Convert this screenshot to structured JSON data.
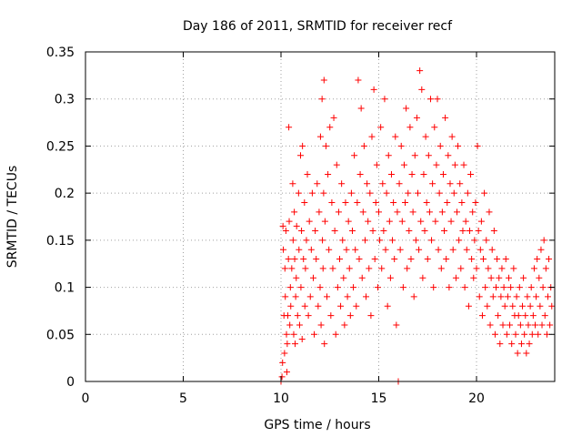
{
  "chart_data": {
    "type": "scatter",
    "title": "Day 186 of 2011, SRMTID for receiver recf",
    "xlabel": "GPS time / hours",
    "ylabel": "SRMTID / TECUs",
    "xlim": [
      0,
      24
    ],
    "ylim": [
      0,
      0.35
    ],
    "x_ticks": [
      0,
      5,
      10,
      15,
      20
    ],
    "y_ticks": [
      0,
      0.05,
      0.1,
      0.15,
      0.2,
      0.25,
      0.3,
      0.35
    ],
    "x_tick_labels": [
      "0",
      "5",
      "10",
      "15",
      "20"
    ],
    "y_tick_labels": [
      "0",
      "0.05",
      "0.1",
      "0.15",
      "0.2",
      "0.25",
      "0.3",
      "0.35"
    ],
    "grid": true,
    "marker": "+",
    "colors": {
      "points": "#ff0000",
      "axes": "#000000",
      "grid": "#a0a0a0"
    },
    "series": [
      {
        "name": "recf",
        "points": [
          [
            10.0,
            0.0
          ],
          [
            10.05,
            0.005
          ],
          [
            10.08,
            0.02
          ],
          [
            10.1,
            0.165
          ],
          [
            10.12,
            0.14
          ],
          [
            10.15,
            0.07
          ],
          [
            10.18,
            0.03
          ],
          [
            10.2,
            0.12
          ],
          [
            10.22,
            0.09
          ],
          [
            10.25,
            0.16
          ],
          [
            10.28,
            0.05
          ],
          [
            10.3,
            0.01
          ],
          [
            10.32,
            0.04
          ],
          [
            10.35,
            0.07
          ],
          [
            10.38,
            0.13
          ],
          [
            10.4,
            0.27
          ],
          [
            10.42,
            0.17
          ],
          [
            10.45,
            0.06
          ],
          [
            10.48,
            0.1
          ],
          [
            10.5,
            0.08
          ],
          [
            10.55,
            0.12
          ],
          [
            10.6,
            0.21
          ],
          [
            10.62,
            0.15
          ],
          [
            10.65,
            0.05
          ],
          [
            10.68,
            0.18
          ],
          [
            10.7,
            0.13
          ],
          [
            10.72,
            0.04
          ],
          [
            10.75,
            0.09
          ],
          [
            10.78,
            0.11
          ],
          [
            10.8,
            0.165
          ],
          [
            10.85,
            0.07
          ],
          [
            10.9,
            0.2
          ],
          [
            10.92,
            0.14
          ],
          [
            10.95,
            0.06
          ],
          [
            11.0,
            0.24
          ],
          [
            11.02,
            0.1
          ],
          [
            11.05,
            0.16
          ],
          [
            11.08,
            0.045
          ],
          [
            11.1,
            0.25
          ],
          [
            11.15,
            0.13
          ],
          [
            11.2,
            0.19
          ],
          [
            11.22,
            0.08
          ],
          [
            11.25,
            0.12
          ],
          [
            11.3,
            0.15
          ],
          [
            11.35,
            0.22
          ],
          [
            11.4,
            0.07
          ],
          [
            11.45,
            0.17
          ],
          [
            11.5,
            0.09
          ],
          [
            11.55,
            0.14
          ],
          [
            11.6,
            0.2
          ],
          [
            11.65,
            0.11
          ],
          [
            11.7,
            0.05
          ],
          [
            11.75,
            0.16
          ],
          [
            11.8,
            0.13
          ],
          [
            11.85,
            0.21
          ],
          [
            11.9,
            0.08
          ],
          [
            11.95,
            0.18
          ],
          [
            12.0,
            0.1
          ],
          [
            12.02,
            0.26
          ],
          [
            12.05,
            0.06
          ],
          [
            12.1,
            0.3
          ],
          [
            12.12,
            0.15
          ],
          [
            12.15,
            0.12
          ],
          [
            12.18,
            0.2
          ],
          [
            12.2,
            0.32
          ],
          [
            12.22,
            0.04
          ],
          [
            12.25,
            0.17
          ],
          [
            12.3,
            0.25
          ],
          [
            12.35,
            0.09
          ],
          [
            12.4,
            0.22
          ],
          [
            12.45,
            0.14
          ],
          [
            12.5,
            0.27
          ],
          [
            12.55,
            0.07
          ],
          [
            12.6,
            0.19
          ],
          [
            12.65,
            0.12
          ],
          [
            12.7,
            0.28
          ],
          [
            12.75,
            0.16
          ],
          [
            12.8,
            0.05
          ],
          [
            12.85,
            0.23
          ],
          [
            12.9,
            0.1
          ],
          [
            12.95,
            0.18
          ],
          [
            13.0,
            0.13
          ],
          [
            13.05,
            0.08
          ],
          [
            13.1,
            0.21
          ],
          [
            13.15,
            0.15
          ],
          [
            13.2,
            0.11
          ],
          [
            13.25,
            0.06
          ],
          [
            13.3,
            0.19
          ],
          [
            13.35,
            0.14
          ],
          [
            13.4,
            0.09
          ],
          [
            13.45,
            0.17
          ],
          [
            13.5,
            0.12
          ],
          [
            13.55,
            0.07
          ],
          [
            13.6,
            0.2
          ],
          [
            13.65,
            0.16
          ],
          [
            13.7,
            0.1
          ],
          [
            13.75,
            0.24
          ],
          [
            13.8,
            0.14
          ],
          [
            13.85,
            0.08
          ],
          [
            13.9,
            0.19
          ],
          [
            13.95,
            0.32
          ],
          [
            14.0,
            0.13
          ],
          [
            14.05,
            0.22
          ],
          [
            14.1,
            0.29
          ],
          [
            14.15,
            0.11
          ],
          [
            14.2,
            0.18
          ],
          [
            14.25,
            0.25
          ],
          [
            14.3,
            0.15
          ],
          [
            14.35,
            0.09
          ],
          [
            14.4,
            0.21
          ],
          [
            14.45,
            0.17
          ],
          [
            14.5,
            0.12
          ],
          [
            14.55,
            0.2
          ],
          [
            14.6,
            0.07
          ],
          [
            14.65,
            0.26
          ],
          [
            14.7,
            0.16
          ],
          [
            14.75,
            0.31
          ],
          [
            14.8,
            0.13
          ],
          [
            14.85,
            0.19
          ],
          [
            14.9,
            0.23
          ],
          [
            14.95,
            0.1
          ],
          [
            15.0,
            0.18
          ],
          [
            15.05,
            0.15
          ],
          [
            15.1,
            0.27
          ],
          [
            15.15,
            0.12
          ],
          [
            15.2,
            0.21
          ],
          [
            15.25,
            0.16
          ],
          [
            15.3,
            0.3
          ],
          [
            15.35,
            0.14
          ],
          [
            15.4,
            0.2
          ],
          [
            15.45,
            0.08
          ],
          [
            15.5,
            0.24
          ],
          [
            15.55,
            0.17
          ],
          [
            15.6,
            0.11
          ],
          [
            15.65,
            0.22
          ],
          [
            15.7,
            0.15
          ],
          [
            15.75,
            0.19
          ],
          [
            15.8,
            0.13
          ],
          [
            15.85,
            0.26
          ],
          [
            15.9,
            0.06
          ],
          [
            15.95,
            0.18
          ],
          [
            16.0,
            0.0
          ],
          [
            16.05,
            0.21
          ],
          [
            16.1,
            0.14
          ],
          [
            16.15,
            0.25
          ],
          [
            16.2,
            0.17
          ],
          [
            16.25,
            0.1
          ],
          [
            16.3,
            0.23
          ],
          [
            16.35,
            0.19
          ],
          [
            16.4,
            0.29
          ],
          [
            16.45,
            0.12
          ],
          [
            16.5,
            0.2
          ],
          [
            16.55,
            0.16
          ],
          [
            16.6,
            0.27
          ],
          [
            16.65,
            0.13
          ],
          [
            16.7,
            0.22
          ],
          [
            16.75,
            0.18
          ],
          [
            16.8,
            0.09
          ],
          [
            16.85,
            0.24
          ],
          [
            16.9,
            0.15
          ],
          [
            16.95,
            0.28
          ],
          [
            17.0,
            0.2
          ],
          [
            17.05,
            0.14
          ],
          [
            17.1,
            0.33
          ],
          [
            17.15,
            0.17
          ],
          [
            17.2,
            0.31
          ],
          [
            17.25,
            0.11
          ],
          [
            17.3,
            0.22
          ],
          [
            17.35,
            0.16
          ],
          [
            17.4,
            0.26
          ],
          [
            17.45,
            0.19
          ],
          [
            17.5,
            0.13
          ],
          [
            17.55,
            0.24
          ],
          [
            17.6,
            0.18
          ],
          [
            17.65,
            0.3
          ],
          [
            17.7,
            0.15
          ],
          [
            17.75,
            0.21
          ],
          [
            17.8,
            0.1
          ],
          [
            17.85,
            0.27
          ],
          [
            17.9,
            0.17
          ],
          [
            17.95,
            0.23
          ],
          [
            18.0,
            0.3
          ],
          [
            18.05,
            0.14
          ],
          [
            18.1,
            0.2
          ],
          [
            18.15,
            0.25
          ],
          [
            18.2,
            0.12
          ],
          [
            18.25,
            0.18
          ],
          [
            18.3,
            0.22
          ],
          [
            18.35,
            0.16
          ],
          [
            18.4,
            0.28
          ],
          [
            18.45,
            0.13
          ],
          [
            18.5,
            0.19
          ],
          [
            18.55,
            0.24
          ],
          [
            18.6,
            0.1
          ],
          [
            18.65,
            0.21
          ],
          [
            18.7,
            0.17
          ],
          [
            18.75,
            0.26
          ],
          [
            18.8,
            0.14
          ],
          [
            18.85,
            0.2
          ],
          [
            18.9,
            0.23
          ],
          [
            18.95,
            0.11
          ],
          [
            19.0,
            0.18
          ],
          [
            19.05,
            0.25
          ],
          [
            19.1,
            0.15
          ],
          [
            19.15,
            0.21
          ],
          [
            19.2,
            0.12
          ],
          [
            19.25,
            0.19
          ],
          [
            19.3,
            0.16
          ],
          [
            19.35,
            0.23
          ],
          [
            19.4,
            0.1
          ],
          [
            19.45,
            0.17
          ],
          [
            19.5,
            0.14
          ],
          [
            19.55,
            0.2
          ],
          [
            19.6,
            0.08
          ],
          [
            19.65,
            0.16
          ],
          [
            19.7,
            0.22
          ],
          [
            19.75,
            0.13
          ],
          [
            19.8,
            0.18
          ],
          [
            19.85,
            0.11
          ],
          [
            19.9,
            0.15
          ],
          [
            19.95,
            0.19
          ],
          [
            20.0,
            0.12
          ],
          [
            20.05,
            0.25
          ],
          [
            20.1,
            0.16
          ],
          [
            20.15,
            0.09
          ],
          [
            20.2,
            0.14
          ],
          [
            20.25,
            0.17
          ],
          [
            20.3,
            0.07
          ],
          [
            20.35,
            0.13
          ],
          [
            20.4,
            0.2
          ],
          [
            20.45,
            0.1
          ],
          [
            20.5,
            0.15
          ],
          [
            20.55,
            0.08
          ],
          [
            20.6,
            0.12
          ],
          [
            20.65,
            0.18
          ],
          [
            20.7,
            0.06
          ],
          [
            20.75,
            0.11
          ],
          [
            20.8,
            0.14
          ],
          [
            20.85,
            0.09
          ],
          [
            20.9,
            0.16
          ],
          [
            20.95,
            0.05
          ],
          [
            21.0,
            0.1
          ],
          [
            21.05,
            0.13
          ],
          [
            21.1,
            0.07
          ],
          [
            21.15,
            0.11
          ],
          [
            21.2,
            0.04
          ],
          [
            21.25,
            0.09
          ],
          [
            21.3,
            0.12
          ],
          [
            21.35,
            0.06
          ],
          [
            21.4,
            0.1
          ],
          [
            21.45,
            0.08
          ],
          [
            21.5,
            0.13
          ],
          [
            21.55,
            0.05
          ],
          [
            21.6,
            0.09
          ],
          [
            21.65,
            0.11
          ],
          [
            21.7,
            0.06
          ],
          [
            21.75,
            0.1
          ],
          [
            21.8,
            0.04
          ],
          [
            21.85,
            0.08
          ],
          [
            21.9,
            0.12
          ],
          [
            21.95,
            0.07
          ],
          [
            22.0,
            0.05
          ],
          [
            22.05,
            0.09
          ],
          [
            22.1,
            0.03
          ],
          [
            22.15,
            0.07
          ],
          [
            22.2,
            0.1
          ],
          [
            22.25,
            0.06
          ],
          [
            22.3,
            0.04
          ],
          [
            22.35,
            0.08
          ],
          [
            22.4,
            0.11
          ],
          [
            22.45,
            0.05
          ],
          [
            22.5,
            0.07
          ],
          [
            22.55,
            0.03
          ],
          [
            22.6,
            0.09
          ],
          [
            22.65,
            0.06
          ],
          [
            22.7,
            0.04
          ],
          [
            22.75,
            0.08
          ],
          [
            22.8,
            0.1
          ],
          [
            22.85,
            0.05
          ],
          [
            22.9,
            0.07
          ],
          [
            22.95,
            0.12
          ],
          [
            23.0,
            0.06
          ],
          [
            23.05,
            0.09
          ],
          [
            23.1,
            0.13
          ],
          [
            23.15,
            0.05
          ],
          [
            23.2,
            0.11
          ],
          [
            23.25,
            0.08
          ],
          [
            23.3,
            0.14
          ],
          [
            23.35,
            0.06
          ],
          [
            23.4,
            0.1
          ],
          [
            23.45,
            0.15
          ],
          [
            23.5,
            0.07
          ],
          [
            23.55,
            0.12
          ],
          [
            23.6,
            0.05
          ],
          [
            23.65,
            0.09
          ],
          [
            23.7,
            0.13
          ],
          [
            23.75,
            0.06
          ],
          [
            23.8,
            0.1
          ],
          [
            23.85,
            0.08
          ]
        ]
      }
    ]
  }
}
